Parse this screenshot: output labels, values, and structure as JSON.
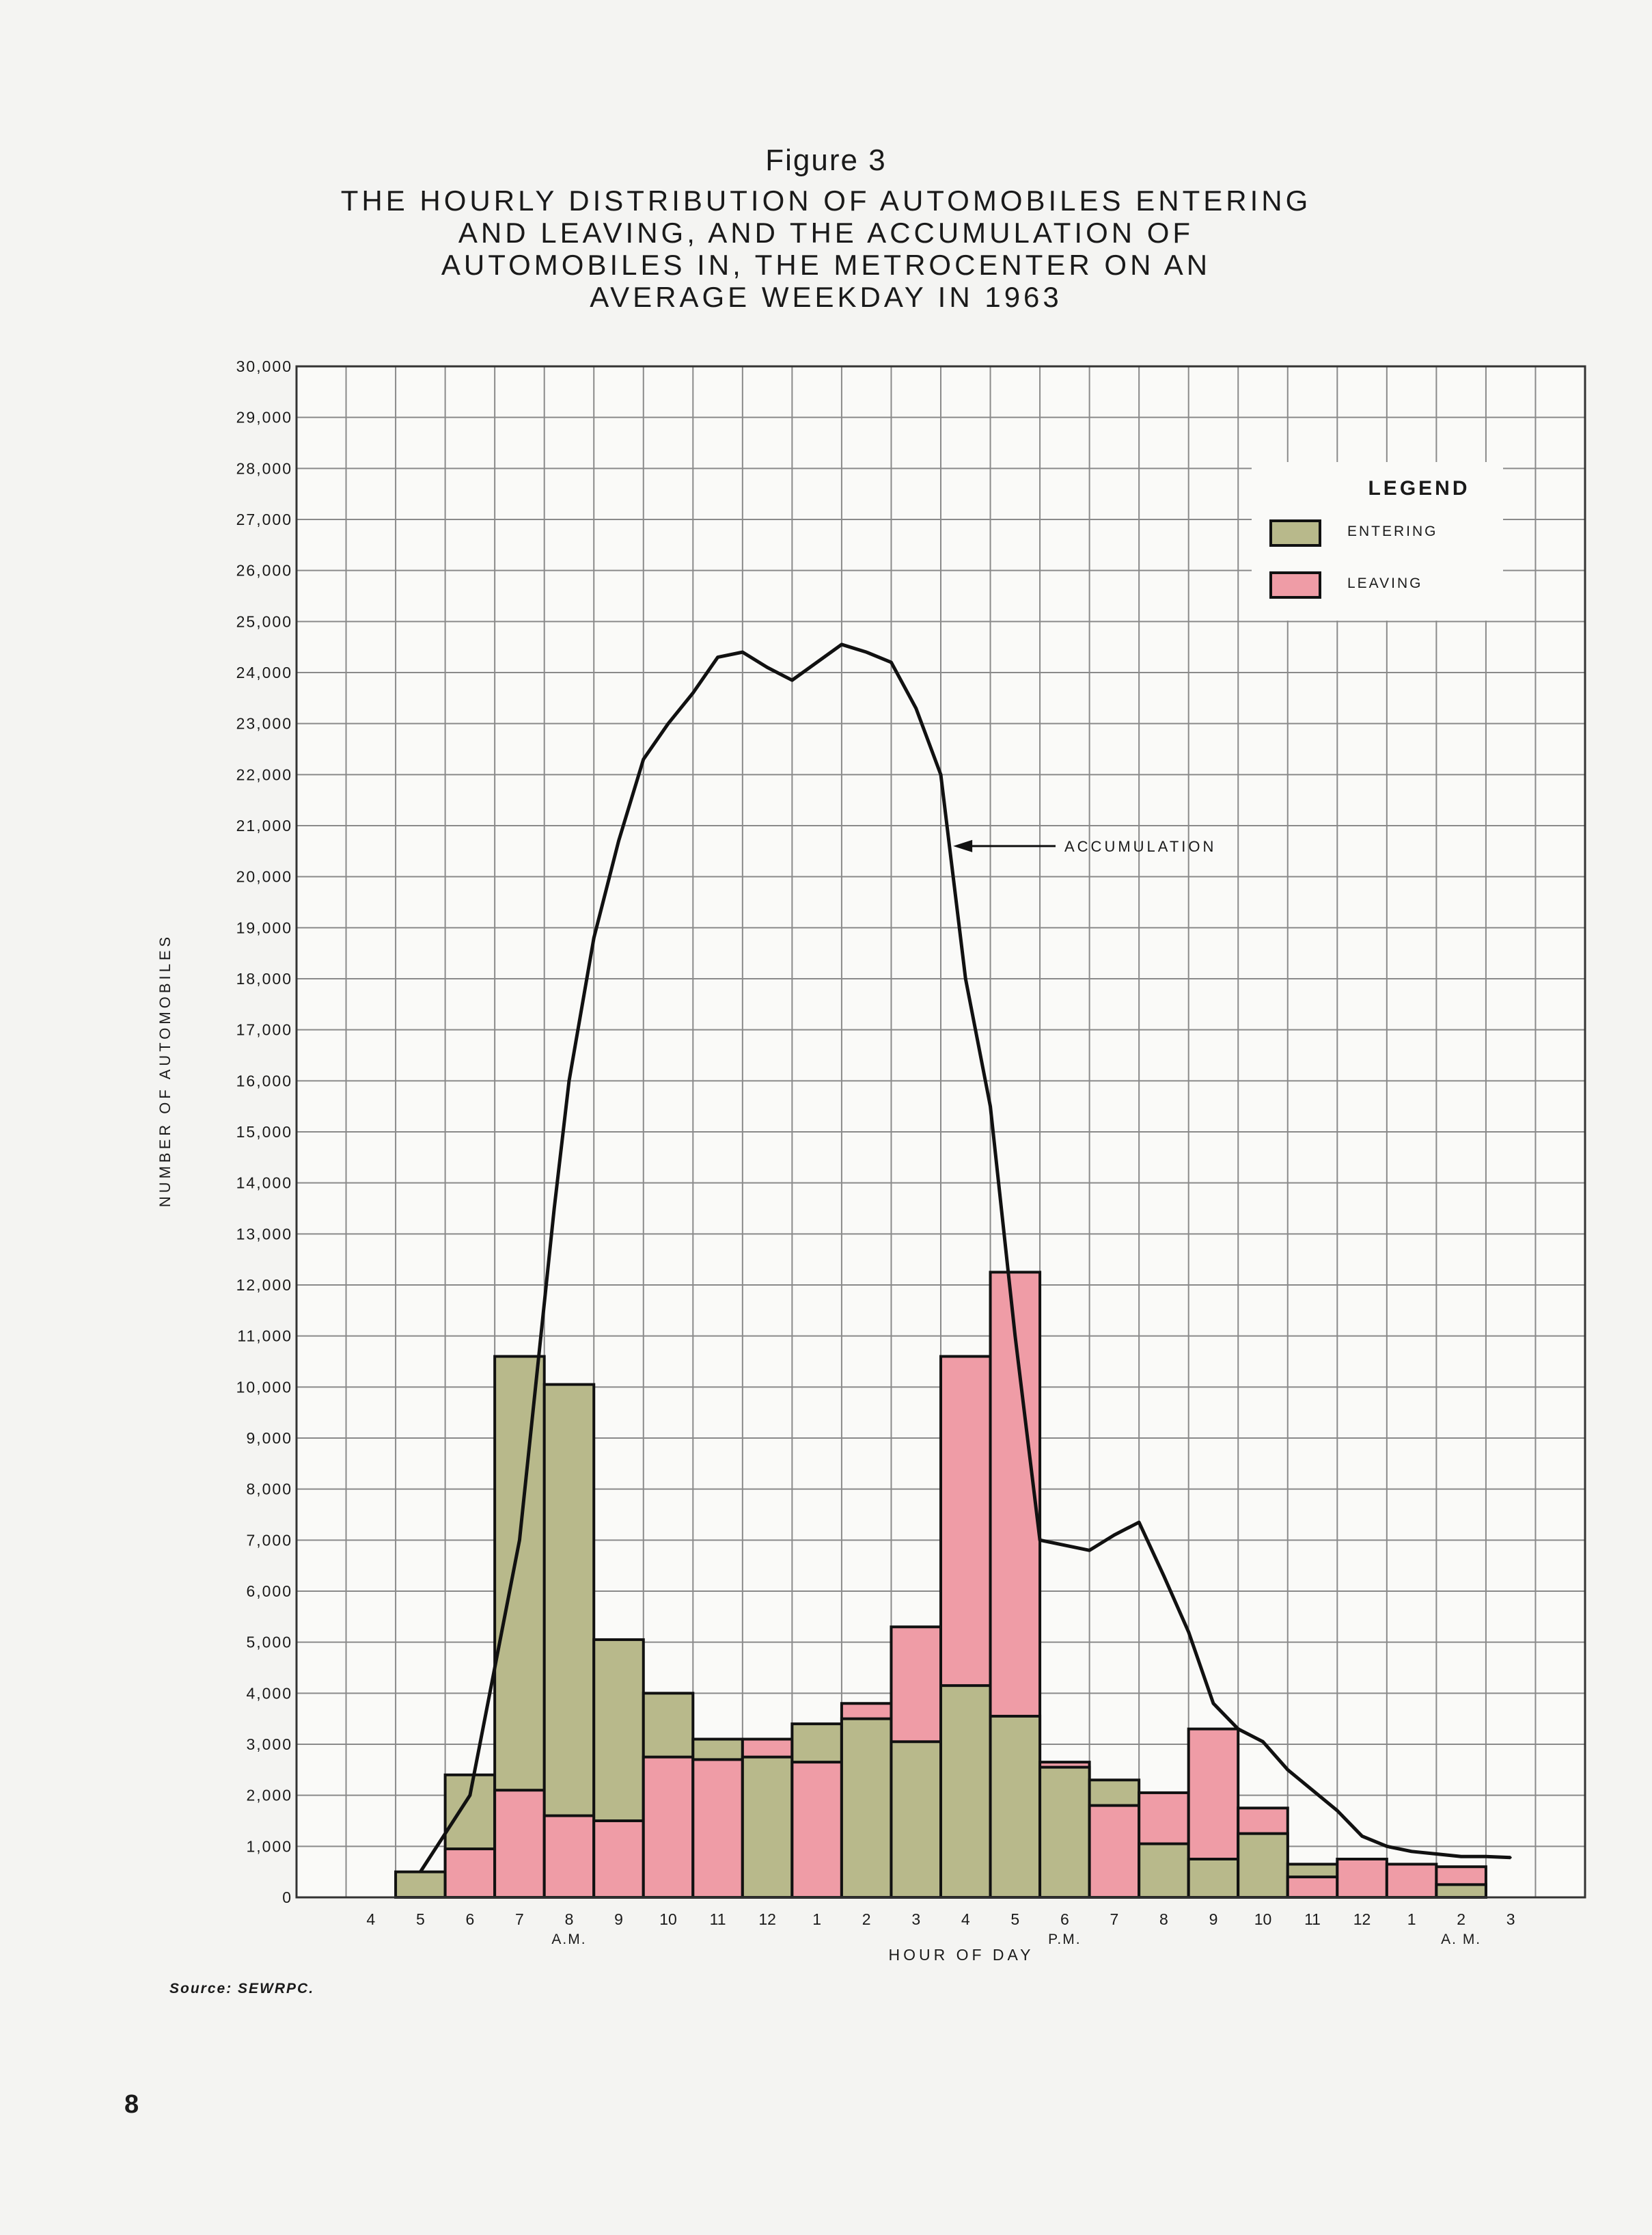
{
  "figure_label": "Figure 3",
  "title_lines": [
    "THE HOURLY DISTRIBUTION OF AUTOMOBILES ENTERING",
    "AND LEAVING, AND THE ACCUMULATION OF",
    "AUTOMOBILES IN, THE METROCENTER ON AN",
    "AVERAGE WEEKDAY IN 1963"
  ],
  "source_note": "Source: SEWRPC.",
  "page_number": "8",
  "colors": {
    "entering": "#b8b98b",
    "leaving": "#ef9ca6",
    "line": "#111111",
    "grid": "#8a8a8a"
  },
  "chart_data": {
    "type": "bar",
    "ylabel": "NUMBER OF AUTOMOBILES",
    "xlabel": "HOUR OF DAY",
    "ylim": [
      0,
      30000
    ],
    "y_ticks": [
      "0",
      "1,000",
      "2,000",
      "3,000",
      "4,000",
      "5,000",
      "6,000",
      "7,000",
      "8,000",
      "9,000",
      "10,000",
      "11,000",
      "12,000",
      "13,000",
      "14,000",
      "15,000",
      "16,000",
      "17,000",
      "18,000",
      "19,000",
      "20,000",
      "21,000",
      "22,000",
      "23,000",
      "24,000",
      "25,000",
      "26,000",
      "27,000",
      "28,000",
      "29,000",
      "30,000"
    ],
    "categories": [
      "4",
      "5",
      "6",
      "7",
      "8",
      "9",
      "10",
      "11",
      "12",
      "1",
      "2",
      "3",
      "4",
      "5",
      "6",
      "7",
      "8",
      "9",
      "10",
      "11",
      "12",
      "1",
      "2",
      "3"
    ],
    "period_labels": [
      {
        "under": 4,
        "text": "A.M."
      },
      {
        "under": 14,
        "text": "P.M."
      },
      {
        "under": 22,
        "text": "A. M."
      }
    ],
    "legend": {
      "title": "LEGEND",
      "position": "top-right",
      "items": [
        "ENTERING",
        "LEAVING"
      ]
    },
    "series": [
      {
        "name": "ENTERING",
        "values": [
          0,
          500,
          2400,
          10600,
          10050,
          5050,
          4000,
          3100,
          2750,
          3400,
          3500,
          3050,
          4150,
          3550,
          2550,
          2300,
          1050,
          750,
          1250,
          650,
          0,
          0,
          250,
          0
        ]
      },
      {
        "name": "LEAVING",
        "values": [
          0,
          0,
          950,
          2100,
          1600,
          1500,
          2750,
          2700,
          3100,
          2650,
          3800,
          5300,
          10600,
          12250,
          2650,
          1800,
          2050,
          3300,
          1750,
          400,
          750,
          650,
          600,
          0
        ]
      },
      {
        "name": "ACCUMULATION",
        "type": "line",
        "x": [
          1,
          2,
          3,
          3.7,
          4,
          4.5,
          5,
          5.5,
          6,
          6.5,
          7,
          7.5,
          8,
          8.5,
          9,
          9.5,
          10,
          10.5,
          11,
          11.5,
          12,
          12.5,
          13,
          13.5,
          14,
          14.5,
          15,
          15.5,
          16,
          16.5,
          17,
          17.5,
          18,
          18.5,
          19,
          19.5,
          20,
          20.5,
          21,
          21.5,
          22,
          22.5,
          23
        ],
        "values": [
          500,
          2000,
          7000,
          13500,
          16000,
          18800,
          20700,
          22300,
          23000,
          23600,
          24300,
          24400,
          24100,
          23850,
          24200,
          24550,
          24400,
          24200,
          23300,
          22000,
          18000,
          15500,
          11000,
          7000,
          6900,
          6800,
          7100,
          7350,
          6300,
          5200,
          3800,
          3300,
          3050,
          2500,
          2100,
          1700,
          1200,
          1000,
          900,
          850,
          800,
          800,
          780
        ]
      }
    ],
    "annotation": {
      "text": "ACCUMULATION",
      "points_to_x": 11.75,
      "points_to_y": 20600
    }
  }
}
